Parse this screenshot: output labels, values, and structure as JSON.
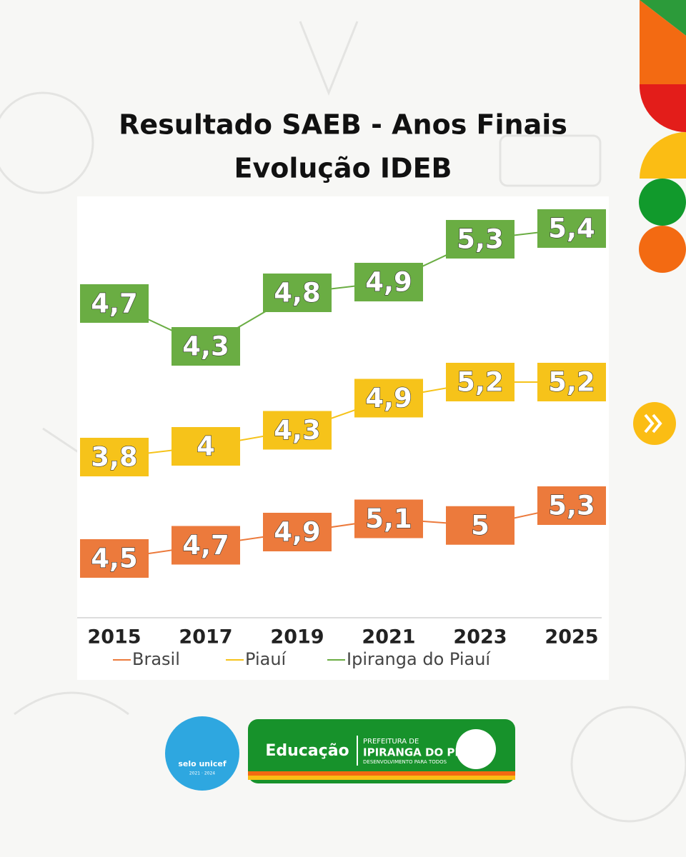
{
  "chart_data": {
    "type": "line",
    "title": [
      "Resultado SAEB - Anos Finais",
      "Evolução IDEB"
    ],
    "categories": [
      "2015",
      "2017",
      "2019",
      "2021",
      "2023",
      "2025"
    ],
    "series": [
      {
        "name": "Brasil",
        "color": "#ec7a3c",
        "values": [
          4.5,
          4.7,
          4.9,
          5.1,
          5,
          5.3
        ],
        "value_labels": [
          "4,5",
          "4,7",
          "4,9",
          "5,1",
          "5",
          "5,3"
        ]
      },
      {
        "name": "Piauí",
        "color": "#f6c31a",
        "values": [
          3.8,
          4,
          4.3,
          4.9,
          5.2,
          5.2
        ],
        "value_labels": [
          "3,8",
          "4",
          "4,3",
          "4,9",
          "5,2",
          "5,2"
        ]
      },
      {
        "name": "Ipiranga do Piauí",
        "color": "#6aad43",
        "values": [
          4.7,
          4.3,
          4.8,
          4.9,
          5.3,
          5.4
        ],
        "value_labels": [
          "4,7",
          "4,3",
          "4,8",
          "4,9",
          "5,3",
          "5,4"
        ]
      }
    ]
  },
  "logos": {
    "selo": "selo unicef",
    "selo_years": "2021 · 2024",
    "educacao": "Educação",
    "prefeitura": "PREFEITURA DE",
    "city": "IPIRANGA DO PIAUÍ",
    "slogan": "DESENVOLVIMENTO PARA TODOS"
  }
}
